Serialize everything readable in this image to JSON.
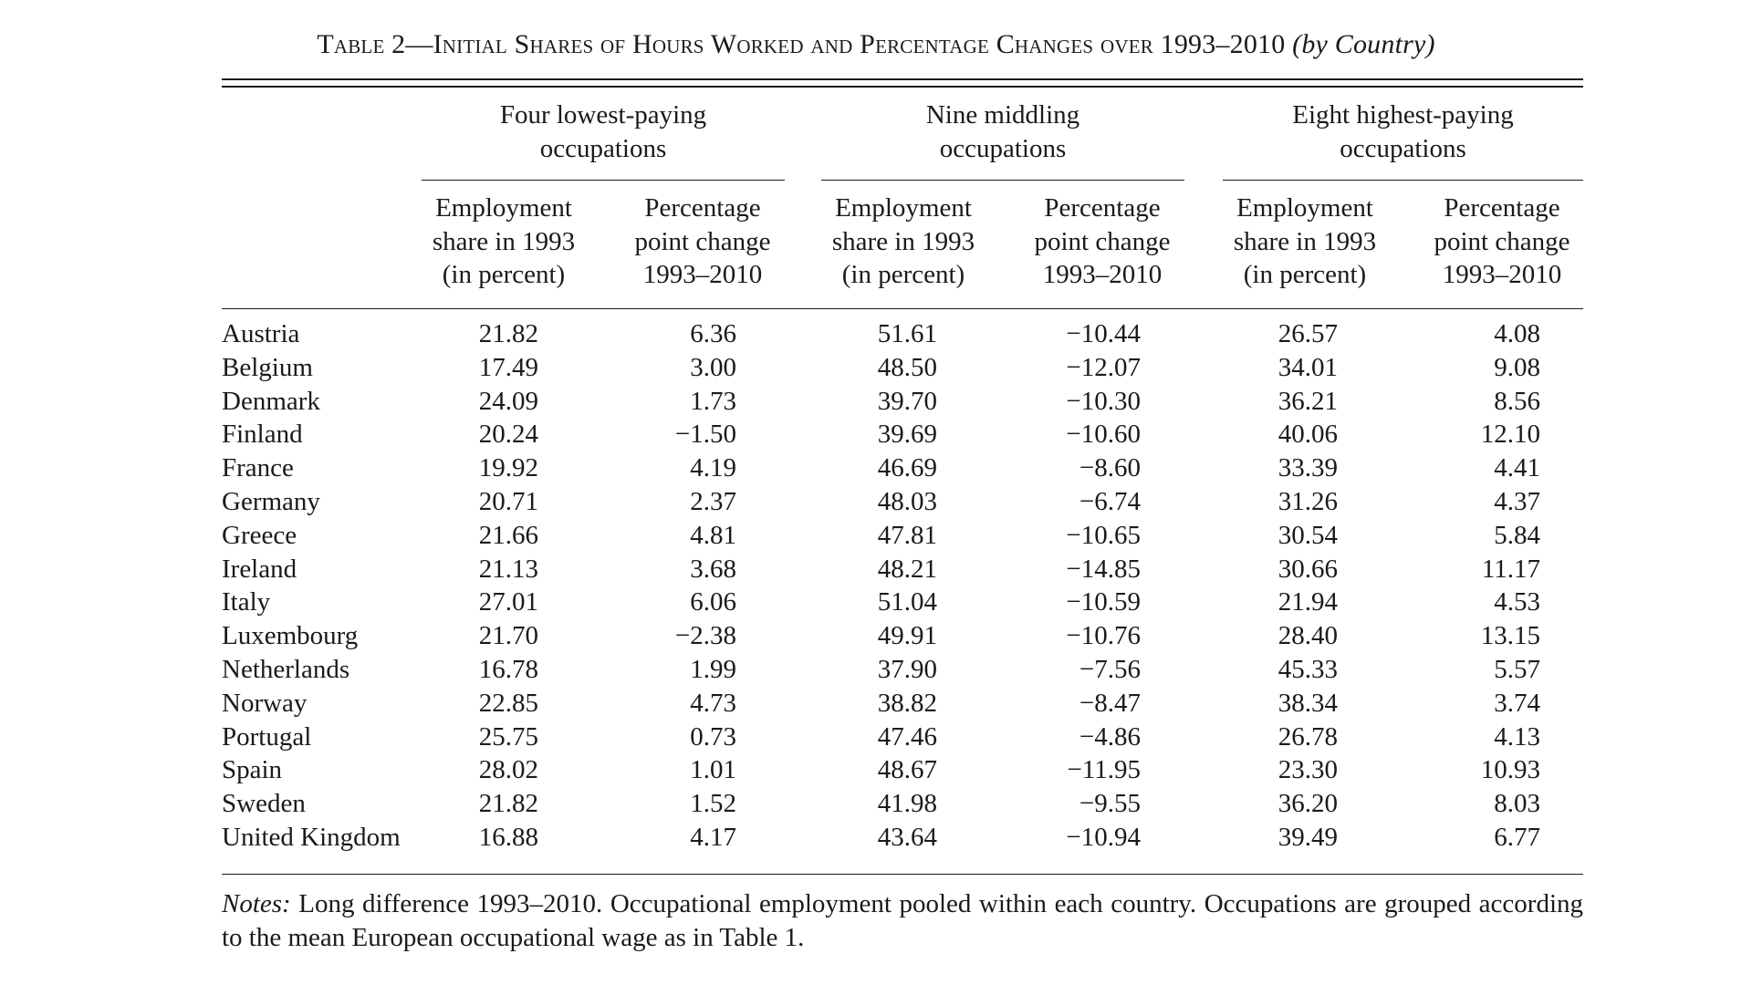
{
  "table": {
    "title_prefix": "Table 2—Initial Shares of Hours Worked and Percentage Changes over 1993–2010",
    "title_suffix": "(by Country)",
    "groups": [
      {
        "line1": "Four lowest-paying",
        "line2": "occupations"
      },
      {
        "line1": "Nine middling",
        "line2": "occupations"
      },
      {
        "line1": "Eight highest-paying",
        "line2": "occupations"
      }
    ],
    "column_headers": {
      "share": {
        "line1": "Employment",
        "line2": "share in 1993",
        "line3": "(in percent)"
      },
      "change": {
        "line1": "Percentage",
        "line2": "point change",
        "line3": "1993–2010"
      }
    },
    "rows": [
      {
        "country": "Austria",
        "low_share": "21.82",
        "low_change": "6.36",
        "mid_share": "51.61",
        "mid_change": "−10.44",
        "high_share": "26.57",
        "high_change": "4.08"
      },
      {
        "country": "Belgium",
        "low_share": "17.49",
        "low_change": "3.00",
        "mid_share": "48.50",
        "mid_change": "−12.07",
        "high_share": "34.01",
        "high_change": "9.08"
      },
      {
        "country": "Denmark",
        "low_share": "24.09",
        "low_change": "1.73",
        "mid_share": "39.70",
        "mid_change": "−10.30",
        "high_share": "36.21",
        "high_change": "8.56"
      },
      {
        "country": "Finland",
        "low_share": "20.24",
        "low_change": "−1.50",
        "mid_share": "39.69",
        "mid_change": "−10.60",
        "high_share": "40.06",
        "high_change": "12.10"
      },
      {
        "country": "France",
        "low_share": "19.92",
        "low_change": "4.19",
        "mid_share": "46.69",
        "mid_change": "−8.60",
        "high_share": "33.39",
        "high_change": "4.41"
      },
      {
        "country": "Germany",
        "low_share": "20.71",
        "low_change": "2.37",
        "mid_share": "48.03",
        "mid_change": "−6.74",
        "high_share": "31.26",
        "high_change": "4.37"
      },
      {
        "country": "Greece",
        "low_share": "21.66",
        "low_change": "4.81",
        "mid_share": "47.81",
        "mid_change": "−10.65",
        "high_share": "30.54",
        "high_change": "5.84"
      },
      {
        "country": "Ireland",
        "low_share": "21.13",
        "low_change": "3.68",
        "mid_share": "48.21",
        "mid_change": "−14.85",
        "high_share": "30.66",
        "high_change": "11.17"
      },
      {
        "country": "Italy",
        "low_share": "27.01",
        "low_change": "6.06",
        "mid_share": "51.04",
        "mid_change": "−10.59",
        "high_share": "21.94",
        "high_change": "4.53"
      },
      {
        "country": "Luxembourg",
        "low_share": "21.70",
        "low_change": "−2.38",
        "mid_share": "49.91",
        "mid_change": "−10.76",
        "high_share": "28.40",
        "high_change": "13.15"
      },
      {
        "country": "Netherlands",
        "low_share": "16.78",
        "low_change": "1.99",
        "mid_share": "37.90",
        "mid_change": "−7.56",
        "high_share": "45.33",
        "high_change": "5.57"
      },
      {
        "country": "Norway",
        "low_share": "22.85",
        "low_change": "4.73",
        "mid_share": "38.82",
        "mid_change": "−8.47",
        "high_share": "38.34",
        "high_change": "3.74"
      },
      {
        "country": "Portugal",
        "low_share": "25.75",
        "low_change": "0.73",
        "mid_share": "47.46",
        "mid_change": "−4.86",
        "high_share": "26.78",
        "high_change": "4.13"
      },
      {
        "country": "Spain",
        "low_share": "28.02",
        "low_change": "1.01",
        "mid_share": "48.67",
        "mid_change": "−11.95",
        "high_share": "23.30",
        "high_change": "10.93"
      },
      {
        "country": "Sweden",
        "low_share": "21.82",
        "low_change": "1.52",
        "mid_share": "41.98",
        "mid_change": "−9.55",
        "high_share": "36.20",
        "high_change": "8.03"
      },
      {
        "country": "United Kingdom",
        "low_share": "16.88",
        "low_change": "4.17",
        "mid_share": "43.64",
        "mid_change": "−10.94",
        "high_share": "39.49",
        "high_change": "6.77"
      }
    ],
    "notes_label": "Notes:",
    "notes_text": "Long difference 1993–2010. Occupational employment pooled within each country. Occupations are grouped according to the mean European occupational wage as in Table 1."
  }
}
